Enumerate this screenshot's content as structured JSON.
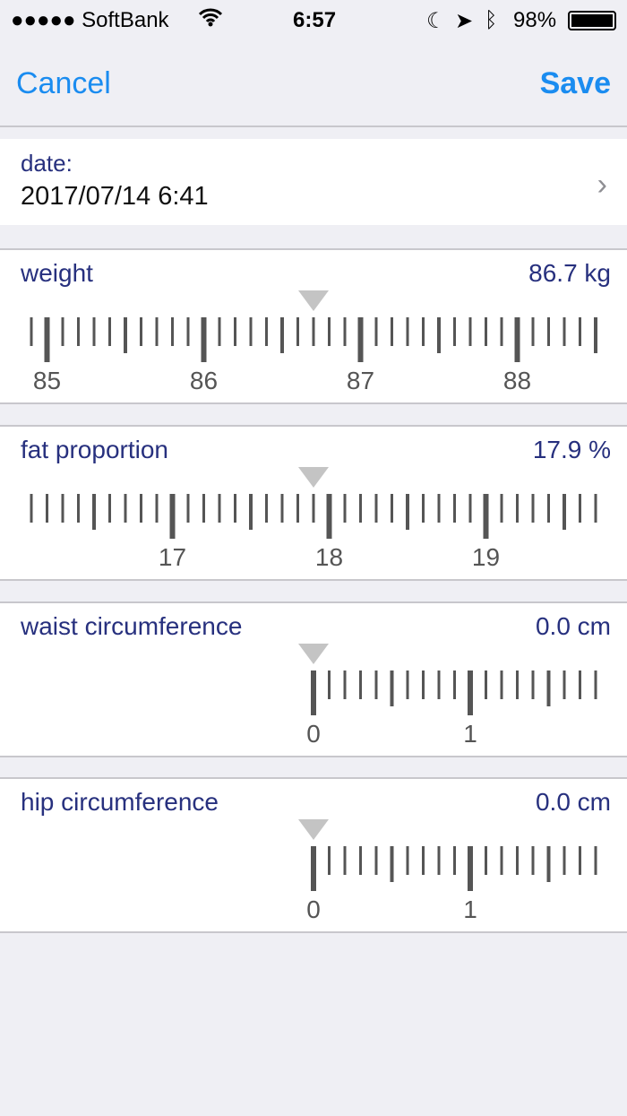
{
  "status_bar": {
    "carrier": "●●●●● SoftBank",
    "time": "6:57",
    "battery": "98%",
    "icons": [
      "wifi-icon",
      "moon-icon",
      "location-icon",
      "bluetooth-icon",
      "battery-icon"
    ]
  },
  "nav": {
    "cancel": "Cancel",
    "save": "Save"
  },
  "date": {
    "label": "date:",
    "value": "2017/07/14 6:41"
  },
  "measurements": [
    {
      "label": "weight",
      "value_text": "86.7 kg",
      "value": 86.7,
      "min": null
    },
    {
      "label": "fat proportion",
      "value_text": "17.9 %",
      "value": 17.9,
      "min": null
    },
    {
      "label": "waist circumference",
      "value_text": "0.0 cm",
      "value": 0.0,
      "min": 0
    },
    {
      "label": "hip circumference",
      "value_text": "0.0 cm",
      "value": 0.0,
      "min": 0
    }
  ],
  "colors": {
    "accent": "#1a8cf0",
    "label": "#27307e",
    "tick": "#555555",
    "pointer": "#c4c4c4"
  }
}
